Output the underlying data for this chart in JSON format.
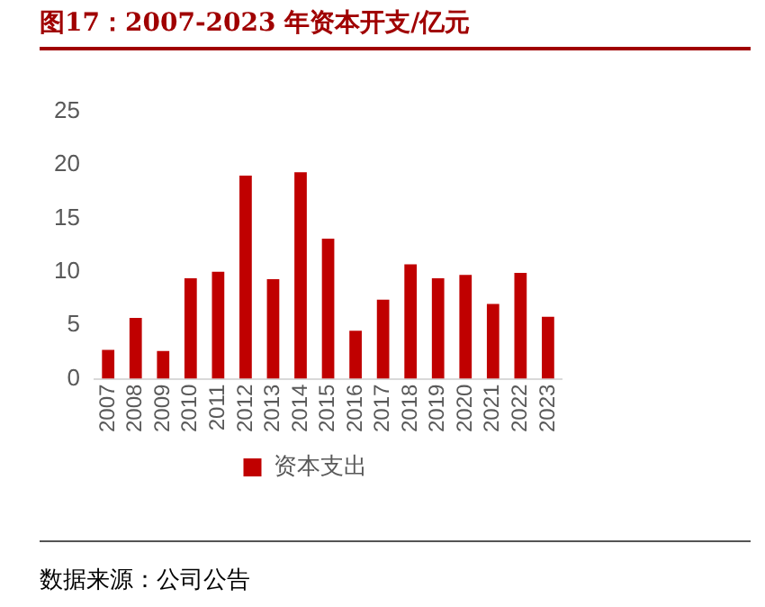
{
  "chart_data": {
    "type": "bar",
    "title": "图17：2007-2023 年资本开支/亿元",
    "categories": [
      "2007",
      "2008",
      "2009",
      "2010",
      "2011",
      "2012",
      "2013",
      "2014",
      "2015",
      "2016",
      "2017",
      "2018",
      "2019",
      "2020",
      "2021",
      "2022",
      "2023"
    ],
    "series": [
      {
        "name": "资本支出",
        "color": "#c00000",
        "values": [
          2.7,
          5.7,
          2.6,
          9.4,
          10,
          19,
          9.3,
          19.3,
          13.1,
          4.5,
          7.4,
          10.7,
          9.4,
          9.7,
          7,
          9.9,
          5.8
        ]
      }
    ],
    "ylim": [
      0,
      25
    ],
    "yticks": [
      0,
      5,
      10,
      15,
      20,
      25
    ],
    "grid": false,
    "legend": "bottom",
    "annotations": [
      "数据来源：公司公告"
    ]
  }
}
